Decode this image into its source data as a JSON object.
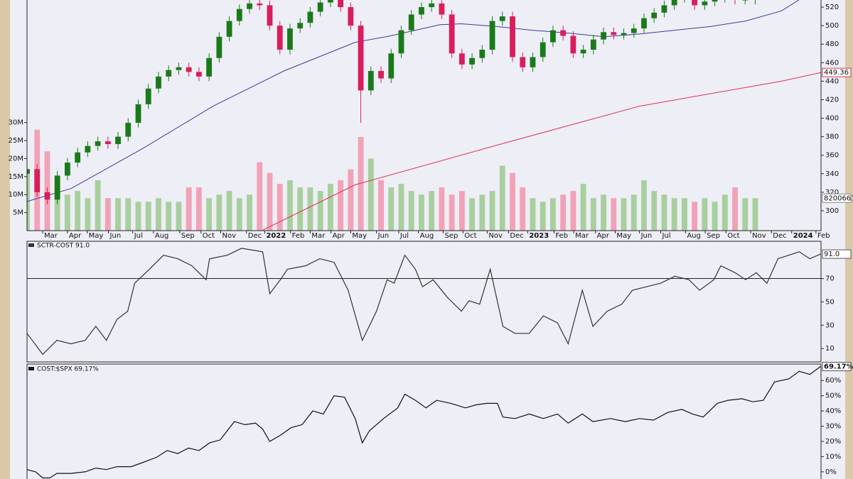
{
  "chart_data": [
    {
      "type": "candlestick",
      "xlim": [
        0,
        157
      ],
      "xticks": [
        {
          "value": 3.1,
          "label": "Mar"
        },
        {
          "value": 8.0,
          "label": "Apr"
        },
        {
          "value": 11.9,
          "label": "May"
        },
        {
          "value": 16.1,
          "label": "Jun"
        },
        {
          "value": 20.9,
          "label": "Jul"
        },
        {
          "value": 25.0,
          "label": "Aug"
        },
        {
          "value": 30.2,
          "label": "Sep"
        },
        {
          "value": 34.4,
          "label": "Oct"
        },
        {
          "value": 38.3,
          "label": "Nov"
        },
        {
          "value": 43.4,
          "label": "Dec"
        },
        {
          "value": 47.0,
          "label": "2022"
        },
        {
          "value": 52.1,
          "label": "Feb"
        },
        {
          "value": 56.0,
          "label": "Mar"
        },
        {
          "value": 60.1,
          "label": "Apr"
        },
        {
          "value": 64.0,
          "label": "May"
        },
        {
          "value": 69.1,
          "label": "Jun"
        },
        {
          "value": 73.5,
          "label": "Jul"
        },
        {
          "value": 77.4,
          "label": "Aug"
        },
        {
          "value": 82.3,
          "label": "Sep"
        },
        {
          "value": 86.2,
          "label": "Oct"
        },
        {
          "value": 91.0,
          "label": "Nov"
        },
        {
          "value": 95.2,
          "label": "Dec"
        },
        {
          "value": 99.0,
          "label": "2023"
        },
        {
          "value": 104.2,
          "label": "Feb"
        },
        {
          "value": 108.1,
          "label": "Mar"
        },
        {
          "value": 112.4,
          "label": "Apr"
        },
        {
          "value": 116.3,
          "label": "May"
        },
        {
          "value": 121.1,
          "label": "Jun"
        },
        {
          "value": 125.3,
          "label": "Jul"
        },
        {
          "value": 130.2,
          "label": "Aug"
        },
        {
          "value": 134.1,
          "label": "Sep"
        },
        {
          "value": 138.2,
          "label": "Oct"
        },
        {
          "value": 143.1,
          "label": "Nov"
        },
        {
          "value": 147.2,
          "label": "Dec"
        },
        {
          "value": 151.2,
          "label": "2024"
        },
        {
          "value": 156.0,
          "label": "Feb"
        }
      ],
      "x": [
        0,
        2,
        4,
        6,
        8,
        10,
        12,
        14,
        16,
        18,
        20,
        22,
        24,
        26,
        28,
        30,
        32,
        34,
        36,
        38,
        40,
        42,
        44,
        46,
        48,
        50,
        52,
        54,
        56,
        58,
        60,
        62,
        64,
        66,
        68,
        70,
        72,
        74,
        76,
        78,
        80,
        82,
        84,
        86,
        88,
        90,
        92,
        94,
        96,
        98,
        100,
        102,
        104,
        106,
        108,
        110,
        112,
        114,
        116,
        118,
        120,
        122,
        124,
        126,
        128,
        130,
        132,
        134,
        136,
        138,
        140,
        142,
        144
      ],
      "open": [
        340,
        345,
        320,
        312,
        338,
        352,
        363,
        370,
        375,
        372,
        380,
        395,
        415,
        432,
        445,
        452,
        455,
        450,
        445,
        465,
        488,
        505,
        518,
        524,
        522,
        500,
        474,
        497,
        503,
        515,
        525,
        528,
        520,
        500,
        430,
        451,
        443,
        470,
        495,
        512,
        520,
        524,
        512,
        470,
        458,
        465,
        474,
        505,
        510,
        466,
        455,
        466,
        482,
        495,
        489,
        470,
        474,
        485,
        493,
        490,
        492,
        497,
        508,
        514,
        522,
        530,
        535,
        522,
        526,
        530,
        532,
        528,
        528
      ],
      "high": [
        350,
        350,
        325,
        343,
        357,
        368,
        375,
        380,
        380,
        385,
        400,
        420,
        437,
        450,
        457,
        460,
        460,
        455,
        470,
        493,
        510,
        523,
        529,
        529,
        527,
        505,
        502,
        508,
        520,
        530,
        533,
        533,
        525,
        505,
        456,
        456,
        475,
        500,
        517,
        525,
        529,
        529,
        517,
        475,
        470,
        479,
        510,
        515,
        515,
        471,
        471,
        487,
        500,
        500,
        494,
        479,
        490,
        498,
        498,
        497,
        502,
        513,
        519,
        527,
        535,
        540,
        540,
        531,
        535,
        537,
        537,
        533,
        535
      ],
      "low": [
        335,
        315,
        307,
        307,
        333,
        347,
        358,
        365,
        367,
        367,
        375,
        390,
        410,
        427,
        440,
        447,
        445,
        440,
        440,
        460,
        483,
        500,
        513,
        517,
        495,
        469,
        469,
        492,
        498,
        510,
        520,
        515,
        495,
        395,
        425,
        438,
        438,
        465,
        490,
        507,
        515,
        507,
        465,
        453,
        453,
        460,
        469,
        500,
        461,
        450,
        450,
        461,
        477,
        484,
        465,
        465,
        469,
        480,
        485,
        485,
        487,
        492,
        503,
        509,
        517,
        525,
        517,
        517,
        521,
        525,
        523,
        523,
        523
      ],
      "close": [
        345,
        320,
        312,
        338,
        352,
        363,
        370,
        375,
        372,
        380,
        395,
        415,
        432,
        445,
        452,
        455,
        450,
        445,
        465,
        488,
        505,
        518,
        524,
        522,
        500,
        474,
        497,
        503,
        515,
        525,
        528,
        520,
        500,
        430,
        451,
        443,
        470,
        495,
        512,
        520,
        524,
        512,
        470,
        458,
        465,
        474,
        505,
        510,
        466,
        455,
        466,
        482,
        495,
        489,
        470,
        474,
        485,
        493,
        490,
        492,
        497,
        508,
        514,
        522,
        530,
        535,
        522,
        526,
        530,
        532,
        528,
        528,
        530
      ],
      "up_color": "#1a7a1a",
      "down_color": "#d81e5b",
      "ylim": [
        278.5,
        527.7
      ],
      "yticks": [
        300,
        320,
        340,
        360,
        380,
        400,
        420,
        440,
        460,
        480,
        500,
        520
      ],
      "series": [
        {
          "color": "#3a3aa0",
          "x": [
            0,
            8.7,
            22.8,
            36.8,
            50.8,
            64.9,
            71.9,
            81.7,
            85.9,
            92.9,
            99.9,
            107.0,
            114.0,
            121.1,
            135.1,
            142.1,
            149.2,
            152.7
          ],
          "values": [
            310,
            324,
            367,
            413,
            451,
            482,
            489,
            501,
            502,
            499,
            495,
            492,
            488,
            491,
            499,
            505,
            516,
            528
          ]
        },
        {
          "color": "#e03050",
          "x": [
            46.6,
            64.9,
            93.0,
            121.1,
            149.2,
            157
          ],
          "values": [
            279,
            328,
            371,
            413,
            440,
            449.36
          ]
        }
      ],
      "volume": {
        "values": [
          16,
          28,
          22,
          12,
          10,
          11,
          9,
          14,
          9,
          9,
          9,
          8,
          8,
          9,
          8,
          8,
          12,
          12,
          9,
          10,
          11,
          9,
          10,
          19,
          16,
          13,
          14,
          12,
          12,
          11,
          13,
          14,
          17,
          26,
          20,
          14,
          12,
          13,
          11,
          10,
          11,
          12,
          10,
          11,
          9,
          10,
          11,
          18,
          16,
          12,
          9,
          8,
          9,
          10,
          11,
          13,
          9,
          10,
          9,
          9,
          10,
          14,
          11,
          10,
          9,
          9,
          8,
          9,
          8,
          10,
          12,
          9,
          9
        ],
        "up_color": "#a8cf9e",
        "down_color": "#f2a2b6",
        "ylim": [
          0,
          64
        ],
        "yticks": [
          {
            "value": 5,
            "label": "5M"
          },
          {
            "value": 10,
            "label": "10M"
          },
          {
            "value": 15,
            "label": "15M"
          },
          {
            "value": 20,
            "label": "20M"
          },
          {
            "value": 25,
            "label": "25M"
          },
          {
            "value": 30,
            "label": "30M"
          }
        ],
        "last_label": "8200661"
      }
    },
    {
      "type": "line",
      "title": "SCTR-COST 91.0",
      "color": "#333333",
      "x": [
        0,
        3.1,
        5.9,
        8.7,
        11.5,
        13.6,
        15.7,
        17.8,
        19.9,
        21.3,
        24.2,
        27.0,
        29.8,
        32.6,
        35.4,
        36.1,
        39.6,
        42.4,
        46.6,
        48.0,
        50.1,
        51.5,
        55.1,
        57.9,
        60.7,
        63.5,
        66.3,
        69.1,
        71.2,
        72.6,
        74.7,
        76.8,
        78.2,
        80.3,
        83.1,
        85.9,
        87.4,
        89.5,
        91.6,
        94.1,
        96.5,
        99.3,
        102.1,
        104.9,
        107.0,
        109.8,
        111.9,
        114.7,
        117.6,
        119.7,
        122.5,
        125.3,
        128.1,
        130.9,
        133.0,
        135.8,
        137.2,
        140.0,
        142.1,
        144.2,
        146.3,
        148.5,
        150.6,
        152.7,
        154.8,
        156.9
      ],
      "values": [
        23,
        5,
        17,
        14,
        17,
        29,
        17,
        35,
        42,
        66,
        78,
        90,
        87,
        81,
        69,
        87,
        90,
        96,
        93,
        57,
        69,
        78,
        81,
        87,
        84,
        60,
        17,
        42,
        69,
        66,
        90,
        78,
        63,
        69,
        54,
        42,
        51,
        48,
        78,
        29,
        23,
        23,
        38,
        32,
        14,
        60,
        29,
        42,
        48,
        60,
        63,
        66,
        72,
        69,
        60,
        69,
        81,
        75,
        69,
        75,
        66,
        87,
        90,
        93,
        87,
        91
      ],
      "last_label": "91.0",
      "reference_line": 70,
      "ylim": [
        -1.5,
        102
      ],
      "yticks": [
        10,
        30,
        50,
        70
      ]
    },
    {
      "type": "line",
      "title": "COST:$SPX 69.17%",
      "color": "#111111",
      "x": [
        0,
        1.7,
        3.1,
        4.5,
        5.9,
        8.7,
        11.5,
        13.6,
        15.7,
        17.8,
        20.6,
        22.8,
        25.6,
        27.7,
        29.8,
        31.9,
        34.0,
        36.1,
        38.2,
        41.0,
        43.1,
        45.2,
        46.6,
        48.0,
        50.1,
        52.2,
        54.4,
        56.5,
        58.6,
        60.7,
        62.8,
        64.9,
        66.3,
        67.7,
        70.5,
        73.3,
        74.7,
        76.8,
        78.9,
        81.0,
        83.8,
        86.7,
        88.8,
        90.9,
        93.0,
        94.1,
        96.5,
        99.3,
        102.1,
        104.9,
        107.0,
        109.8,
        111.9,
        115.4,
        118.3,
        121.1,
        123.9,
        126.7,
        129.5,
        131.6,
        133.7,
        136.5,
        138.6,
        141.4,
        143.5,
        145.6,
        147.8,
        150.6,
        152.7,
        154.8,
        156.9
      ],
      "values": [
        1.5,
        0,
        -4,
        -4,
        -1,
        -1,
        0,
        2.5,
        1.5,
        3.4,
        3.4,
        6,
        9.5,
        14,
        12,
        15.6,
        14,
        19,
        21,
        33,
        31,
        32,
        28,
        20,
        24,
        29,
        31,
        40,
        38,
        50,
        49,
        35,
        19,
        27,
        35,
        42,
        51,
        47,
        42,
        47,
        45,
        42,
        44,
        45,
        45,
        36,
        35,
        38,
        35,
        38,
        32,
        38,
        33,
        35,
        33,
        35,
        34,
        39,
        41,
        38,
        36,
        45,
        47,
        48,
        46,
        47,
        59,
        61,
        66,
        64,
        69.17
      ],
      "last_label": "69.17%",
      "ylim": [
        -4.7,
        70.8
      ],
      "yticks": [
        {
          "value": 0,
          "label": "0%"
        },
        {
          "value": 10,
          "label": "10%"
        },
        {
          "value": 20,
          "label": "20%"
        },
        {
          "value": 30,
          "label": "30%"
        },
        {
          "value": 40,
          "label": "40%"
        },
        {
          "value": 50,
          "label": "50%"
        },
        {
          "value": 60,
          "label": "60%"
        }
      ]
    }
  ]
}
